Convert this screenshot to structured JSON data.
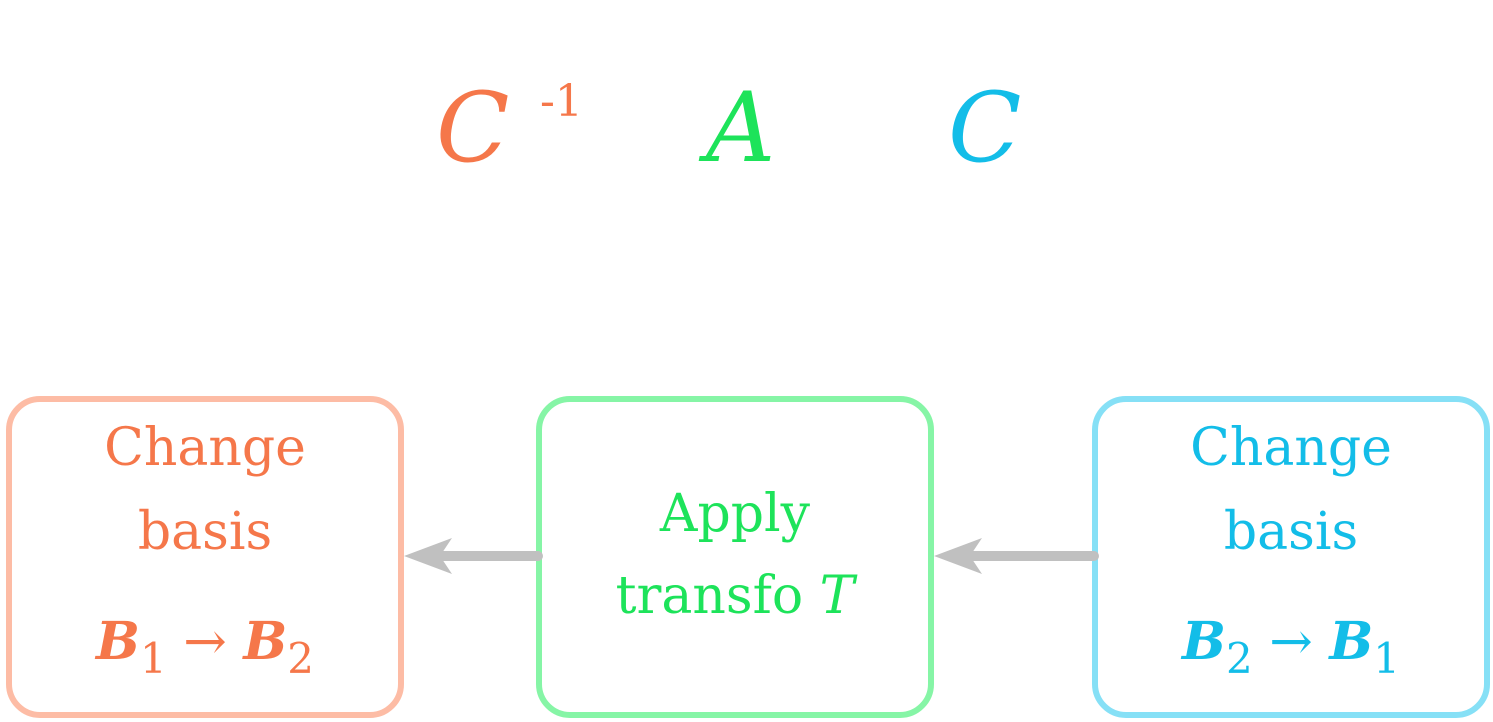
{
  "formula": {
    "left": {
      "symbol": "C",
      "superscript": "-1",
      "color": "#f5774a"
    },
    "middle": {
      "symbol": "A",
      "color": "#1de35a"
    },
    "right": {
      "symbol": "C",
      "color": "#13bde8"
    }
  },
  "boxes": [
    {
      "line1": "Change",
      "line2": "basis",
      "from": "B",
      "from_sub": "1",
      "arrow": "→",
      "to": "B",
      "to_sub": "2",
      "border_color": "#fdbca5",
      "text_color": "#f5774a"
    },
    {
      "line1": "Apply",
      "line2": "transfo",
      "symbol": "T",
      "border_color": "#86f5a6",
      "text_color": "#1de35a"
    },
    {
      "line1": "Change",
      "line2": "basis",
      "from": "B",
      "from_sub": "2",
      "arrow": "→",
      "to": "B",
      "to_sub": "1",
      "border_color": "#86e0f6",
      "text_color": "#13bde8"
    }
  ]
}
